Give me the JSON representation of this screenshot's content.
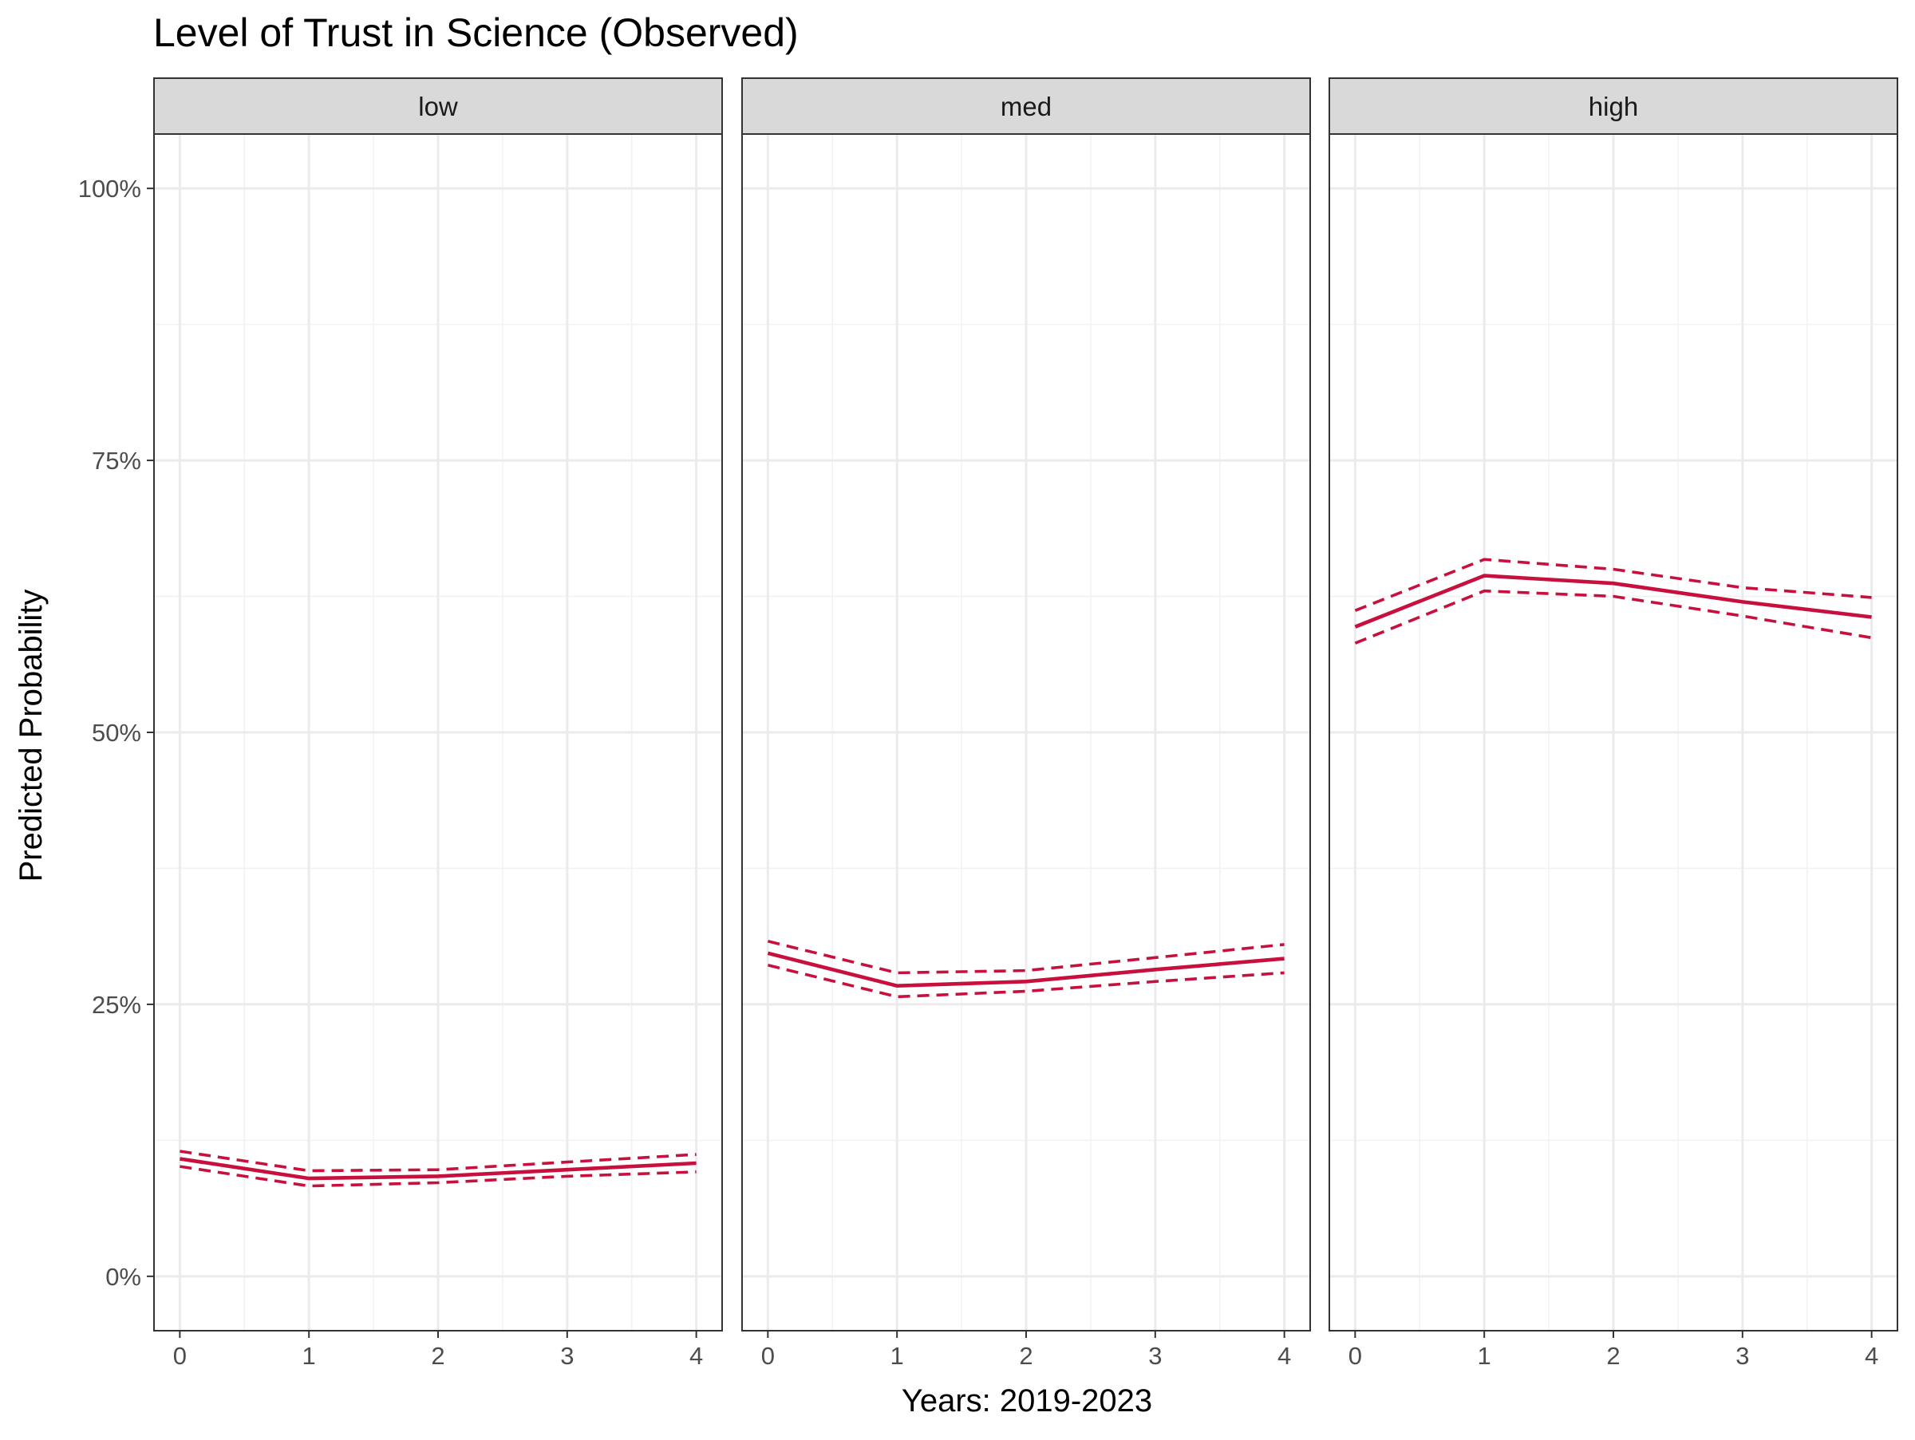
{
  "chart_data": {
    "type": "line",
    "title": "Level of Trust in Science (Observed)",
    "xlabel": "Years: 2019-2023",
    "ylabel": "Predicted Probability",
    "x_ticks": [
      0,
      1,
      2,
      3,
      4
    ],
    "x_tick_labels": [
      "0",
      "1",
      "2",
      "3",
      "4"
    ],
    "y_ticks": [
      0,
      0.25,
      0.5,
      0.75,
      1.0
    ],
    "y_tick_labels": [
      "0%",
      "25%",
      "50%",
      "75%",
      "100%"
    ],
    "xlim": [
      -0.2,
      4.2
    ],
    "ylim": [
      -0.05,
      1.05
    ],
    "grid": true,
    "line_color": "#c8103e",
    "panels": [
      {
        "label": "low",
        "x": [
          0,
          1,
          2,
          3,
          4
        ],
        "estimate": [
          0.108,
          0.09,
          0.092,
          0.098,
          0.104
        ],
        "lower": [
          0.101,
          0.083,
          0.086,
          0.092,
          0.096
        ],
        "upper": [
          0.115,
          0.097,
          0.098,
          0.105,
          0.112
        ]
      },
      {
        "label": "med",
        "x": [
          0,
          1,
          2,
          3,
          4
        ],
        "estimate": [
          0.297,
          0.267,
          0.271,
          0.282,
          0.292
        ],
        "lower": [
          0.286,
          0.257,
          0.262,
          0.271,
          0.279
        ],
        "upper": [
          0.308,
          0.279,
          0.281,
          0.293,
          0.305
        ]
      },
      {
        "label": "high",
        "x": [
          0,
          1,
          2,
          3,
          4
        ],
        "estimate": [
          0.597,
          0.644,
          0.637,
          0.62,
          0.606
        ],
        "lower": [
          0.582,
          0.63,
          0.625,
          0.607,
          0.587
        ],
        "upper": [
          0.612,
          0.659,
          0.65,
          0.633,
          0.624
        ]
      }
    ]
  }
}
